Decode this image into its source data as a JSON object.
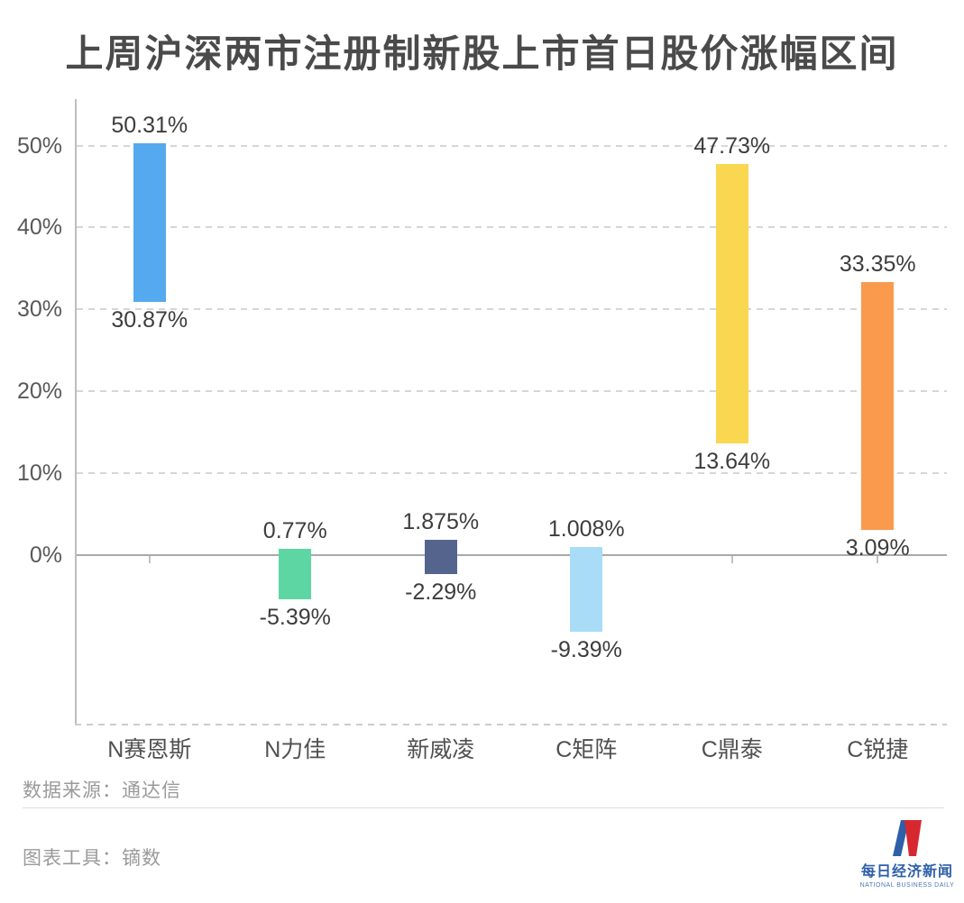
{
  "page": {
    "title": "上周沪深两市注册制新股上市首日股价涨幅区间"
  },
  "chart_data": {
    "type": "bar",
    "subtype": "floating_range_columns",
    "title": "上周沪深两市注册制新股上市首日股价涨幅区间",
    "xlabel": "",
    "ylabel": "",
    "legend": "none",
    "grid": {
      "horizontal": "dashed",
      "zero_line": "solid",
      "bottom_boundary": "dashed"
    },
    "y_axis": {
      "min": -21,
      "max": 55.5,
      "ticks": [
        {
          "value": 50,
          "label": "50%"
        },
        {
          "value": 40,
          "label": "40%"
        },
        {
          "value": 30,
          "label": "30%"
        },
        {
          "value": 20,
          "label": "20%"
        },
        {
          "value": 10,
          "label": "10%"
        },
        {
          "value": 0,
          "label": "0%"
        }
      ]
    },
    "categories": [
      "N赛恩斯",
      "N力佳",
      "新威凌",
      "C矩阵",
      "C鼎泰",
      "C锐捷"
    ],
    "series": [
      {
        "name": "首日股价涨幅区间",
        "ranges": [
          {
            "category": "N赛恩斯",
            "low": 30.87,
            "high": 50.31,
            "low_label": "30.87%",
            "high_label": "50.31%",
            "color": "#55A9EE"
          },
          {
            "category": "N力佳",
            "low": -5.39,
            "high": 0.77,
            "low_label": "-5.39%",
            "high_label": "0.77%",
            "color": "#5DD6A4"
          },
          {
            "category": "新威凌",
            "low": -2.29,
            "high": 1.875,
            "low_label": "-2.29%",
            "high_label": "1.875%",
            "color": "#54648D"
          },
          {
            "category": "C矩阵",
            "low": -9.39,
            "high": 1.008,
            "low_label": "-9.39%",
            "high_label": "1.008%",
            "color": "#A8DCF7"
          },
          {
            "category": "C鼎泰",
            "low": 13.64,
            "high": 47.73,
            "low_label": "13.64%",
            "high_label": "47.73%",
            "color": "#FAD750"
          },
          {
            "category": "C锐捷",
            "low": 3.09,
            "high": 33.35,
            "low_label": "3.09%",
            "high_label": "33.35%",
            "color": "#FA9A4D"
          }
        ]
      }
    ]
  },
  "footer": {
    "data_source": "数据来源：通达信",
    "chart_tool": "图表工具：镝数"
  },
  "logo": {
    "name_cn": "每日经济新闻",
    "name_en": "NATIONAL BUSINESS DAILY",
    "blue": "#2e5fa9",
    "red": "#d7282f"
  }
}
